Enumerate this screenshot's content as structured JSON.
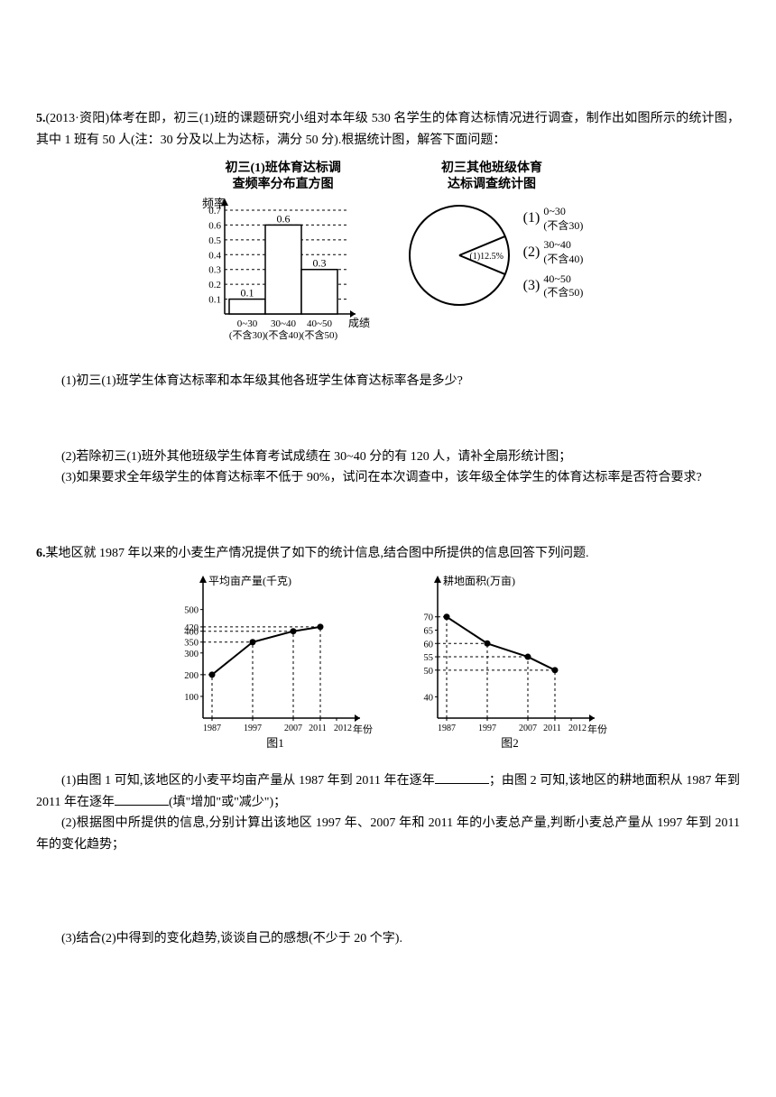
{
  "q5": {
    "num": "5.",
    "source": "(2013·资阳)",
    "stem1": "体考在即，初三(1)班的课题研究小组对本年级 530 名学生的体育达标情况进行调查，制作出如图所示的统计图，其中 1 班有 50 人(注：30 分及以上为达标，满分 50 分).根据统计图，解答下面问题：",
    "hist": {
      "title1": "初三(1)班体育达标调",
      "title2": "查频率分布直方图",
      "y_label": "频率",
      "x_label": "成绩",
      "y_ticks": [
        "0.1",
        "0.2",
        "0.3",
        "0.4",
        "0.5",
        "0.6",
        "0.7"
      ],
      "bars": [
        {
          "label_top": "0~30",
          "label_bot": "(不含30)",
          "value": 0.1
        },
        {
          "label_top": "30~40",
          "label_bot": "(不含40)",
          "value": 0.6
        },
        {
          "label_top": "40~50",
          "label_bot": "(不含50)",
          "value": 0.3
        }
      ],
      "colors": {
        "axis": "#000000",
        "bar_fill": "#ffffff",
        "bar_stroke": "#000000"
      }
    },
    "pie": {
      "title1": "初三其他班级体育",
      "title2": "达标调查统计图",
      "slice_label": "(1)12.5%",
      "slice_angle_deg": 45,
      "legend": [
        {
          "num": "(1)",
          "top": "0~30",
          "bot": "(不含30)"
        },
        {
          "num": "(2)",
          "top": "30~40",
          "bot": "(不含40)"
        },
        {
          "num": "(3)",
          "top": "40~50",
          "bot": "(不含50)"
        }
      ],
      "colors": {
        "stroke": "#000000",
        "fill": "#ffffff"
      }
    },
    "sub1": "(1)初三(1)班学生体育达标率和本年级其他各班学生体育达标率各是多少?",
    "sub2": "(2)若除初三(1)班外其他班级学生体育考试成绩在 30~40 分的有 120 人，请补全扇形统计图；",
    "sub3": "(3)如果要求全年级学生的体育达标率不低于 90%，试问在本次调查中，该年级全体学生的体育达标率是否符合要求?"
  },
  "q6": {
    "num": "6.",
    "stem": "某地区就 1987 年以来的小麦生产情况提供了如下的统计信息,结合图中所提供的信息回答下列问题.",
    "line1": {
      "title": "图1",
      "y_label": "平均亩产量(千克)",
      "x_label": "年份",
      "y_ticks": [
        "100",
        "200",
        "300",
        "350",
        "400",
        "420",
        "500"
      ],
      "y_tick_pos": [
        100,
        200,
        300,
        350,
        400,
        420,
        500
      ],
      "x_ticks": [
        "1987",
        "1997",
        "2007",
        "2011",
        "2012"
      ],
      "points": [
        {
          "year": "1987",
          "value": 200
        },
        {
          "year": "1997",
          "value": 350
        },
        {
          "year": "2007",
          "value": 400
        },
        {
          "year": "2011",
          "value": 420
        }
      ],
      "colors": {
        "axis": "#000000",
        "line": "#000000",
        "marker": "#000000"
      }
    },
    "line2": {
      "title": "图2",
      "y_label": "耕地面积(万亩)",
      "x_label": "年份",
      "y_ticks": [
        "40",
        "50",
        "55",
        "60",
        "65",
        "70"
      ],
      "y_tick_pos": [
        40,
        50,
        55,
        60,
        65,
        70
      ],
      "x_ticks": [
        "1987",
        "1997",
        "2007",
        "2011",
        "2012"
      ],
      "points": [
        {
          "year": "1987",
          "value": 70
        },
        {
          "year": "1997",
          "value": 60
        },
        {
          "year": "2007",
          "value": 55
        },
        {
          "year": "2011",
          "value": 50
        }
      ],
      "colors": {
        "axis": "#000000",
        "line": "#000000",
        "marker": "#000000"
      }
    },
    "sub1a": "(1)由图 1 可知,该地区的小麦平均亩产量从 1987 年到 2011 年在逐年",
    "sub1b": "；由图 2 可知,该地区的耕地面积从 1987 年到 2011 年在逐年",
    "sub1c": "(填\"增加\"或\"减少\")；",
    "sub2": "(2)根据图中所提供的信息,分别计算出该地区 1997 年、2007 年和 2011 年的小麦总产量,判断小麦总产量从 1997 年到 2011 年的变化趋势；",
    "sub3": "(3)结合(2)中得到的变化趋势,谈谈自己的感想(不少于 20 个字)."
  }
}
